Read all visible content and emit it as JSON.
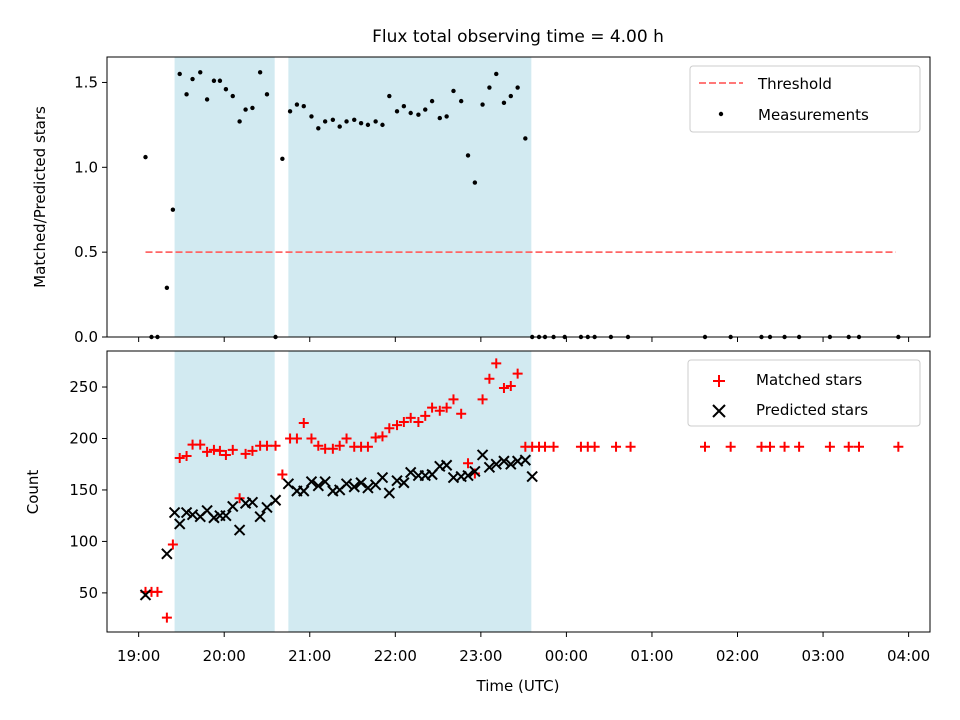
{
  "chart_data": {
    "title": "Flux total observing time = 4.00 h",
    "xlabel": "Time (UTC)",
    "x_unit": "hours UTC, continuous (values above 24 denote times after midnight)",
    "x_tick_labels": [
      "19:00",
      "20:00",
      "21:00",
      "22:00",
      "23:00",
      "00:00",
      "01:00",
      "02:00",
      "03:00",
      "04:00"
    ],
    "shaded_intervals": [
      [
        19.42,
        20.59
      ],
      [
        20.75,
        23.59
      ]
    ],
    "colors": {
      "threshold": "#ff6666",
      "measurement": "#000000",
      "matched": "#ff0000",
      "predicted": "#000000",
      "shade": "#add8e6"
    },
    "panels": [
      {
        "id": "ratio",
        "type": "scatter",
        "ylabel": "Matched/Predicted stars",
        "ylim": [
          0,
          1.65
        ],
        "yticks": [
          "0.0",
          "0.5",
          "1.0",
          "1.5"
        ],
        "legend_position": "upper right",
        "series": [
          {
            "name": "Threshold",
            "kind": "dashed-line",
            "x": [
              19.08,
              27.85
            ],
            "values": [
              0.5,
              0.5
            ]
          },
          {
            "name": "Measurements",
            "kind": "dot",
            "x": [
              19.08,
              19.15,
              19.22,
              19.33,
              19.4,
              19.48,
              19.56,
              19.63,
              19.72,
              19.8,
              19.88,
              19.95,
              20.02,
              20.1,
              20.18,
              20.25,
              20.33,
              20.42,
              20.5,
              20.6,
              20.68,
              20.77,
              20.85,
              20.93,
              21.02,
              21.1,
              21.18,
              21.27,
              21.35,
              21.43,
              21.52,
              21.6,
              21.68,
              21.77,
              21.85,
              21.93,
              22.02,
              22.1,
              22.18,
              22.27,
              22.35,
              22.43,
              22.52,
              22.6,
              22.68,
              22.77,
              22.85,
              22.93,
              23.02,
              23.1,
              23.18,
              23.27,
              23.35,
              23.43,
              23.52,
              23.6,
              23.68,
              23.75,
              23.85,
              23.98,
              24.17,
              24.25,
              24.33,
              24.52,
              24.72,
              25.62,
              25.92,
              26.28,
              26.38,
              26.55,
              26.72,
              27.08,
              27.3,
              27.42,
              27.88
            ],
            "values": [
              1.06,
              0.0,
              0.0,
              0.29,
              0.75,
              1.55,
              1.43,
              1.52,
              1.56,
              1.4,
              1.51,
              1.51,
              1.46,
              1.42,
              1.27,
              1.34,
              1.35,
              1.56,
              1.43,
              0.0,
              1.05,
              1.33,
              1.37,
              1.36,
              1.3,
              1.23,
              1.27,
              1.28,
              1.24,
              1.27,
              1.28,
              1.26,
              1.25,
              1.27,
              1.25,
              1.42,
              1.33,
              1.36,
              1.32,
              1.31,
              1.34,
              1.39,
              1.29,
              1.3,
              1.45,
              1.39,
              1.07,
              0.91,
              1.37,
              1.47,
              1.55,
              1.38,
              1.42,
              1.47,
              1.17,
              0.0,
              0.0,
              0.0,
              0.0,
              0.0,
              0.0,
              0.0,
              0.0,
              0.0,
              0.0,
              0.0,
              0.0,
              0.0,
              0.0,
              0.0,
              0.0,
              0.0,
              0.0,
              0.0,
              0.0
            ]
          }
        ]
      },
      {
        "id": "counts",
        "type": "scatter",
        "ylabel": "Count",
        "ylim": [
          12,
          285
        ],
        "yticks": [
          "50",
          "100",
          "150",
          "200",
          "250"
        ],
        "legend_position": "upper right",
        "series": [
          {
            "name": "Matched stars",
            "kind": "plus",
            "x": [
              19.08,
              19.15,
              19.22,
              19.33,
              19.4,
              19.48,
              19.56,
              19.63,
              19.72,
              19.8,
              19.88,
              19.95,
              20.02,
              20.1,
              20.18,
              20.25,
              20.33,
              20.42,
              20.5,
              20.6,
              20.68,
              20.77,
              20.85,
              20.93,
              21.02,
              21.1,
              21.18,
              21.27,
              21.35,
              21.43,
              21.52,
              21.6,
              21.68,
              21.77,
              21.85,
              21.93,
              22.02,
              22.1,
              22.18,
              22.27,
              22.35,
              22.43,
              22.52,
              22.6,
              22.68,
              22.77,
              22.85,
              22.93,
              23.02,
              23.1,
              23.18,
              23.27,
              23.35,
              23.43,
              23.52,
              23.6,
              23.68,
              23.75,
              23.85,
              24.17,
              24.25,
              24.33,
              24.58,
              24.75,
              25.62,
              25.92,
              26.28,
              26.38,
              26.55,
              26.72,
              27.08,
              27.3,
              27.42,
              27.88
            ],
            "values": [
              51,
              51,
              51,
              26,
              97,
              181,
              183,
              194,
              194,
              187,
              189,
              188,
              184,
              189,
              142,
              185,
              188,
              193,
              193,
              193,
              165,
              200,
              200,
              215,
              200,
              193,
              190,
              190,
              193,
              200,
              192,
              192,
              192,
              201,
              202,
              210,
              213,
              216,
              220,
              216,
              222,
              230,
              227,
              230,
              238,
              224,
              176,
              166,
              238,
              258,
              273,
              249,
              251,
              263,
              192,
              192,
              192,
              192,
              192,
              192,
              192,
              192,
              192,
              192,
              192,
              192,
              192,
              192,
              192,
              192,
              192,
              192,
              192,
              192
            ]
          },
          {
            "name": "Predicted stars",
            "kind": "cross",
            "x": [
              19.08,
              19.33,
              19.42,
              19.48,
              19.56,
              19.63,
              19.72,
              19.8,
              19.88,
              19.95,
              20.02,
              20.1,
              20.18,
              20.25,
              20.33,
              20.42,
              20.5,
              20.6,
              20.75,
              20.85,
              20.93,
              21.02,
              21.1,
              21.18,
              21.27,
              21.35,
              21.43,
              21.52,
              21.6,
              21.68,
              21.77,
              21.85,
              21.93,
              22.02,
              22.1,
              22.18,
              22.27,
              22.35,
              22.43,
              22.52,
              22.6,
              22.68,
              22.77,
              22.85,
              22.93,
              23.02,
              23.1,
              23.18,
              23.27,
              23.35,
              23.43,
              23.52,
              23.6
            ],
            "values": [
              48,
              88,
              128,
              117,
              128,
              126,
              124,
              130,
              123,
              125,
              125,
              134,
              111,
              137,
              138,
              124,
              133,
              140,
              156,
              149,
              149,
              158,
              154,
              158,
              149,
              150,
              156,
              153,
              157,
              152,
              155,
              162,
              147,
              159,
              157,
              167,
              164,
              164,
              165,
              173,
              174,
              162,
              163,
              164,
              168,
              184,
              172,
              175,
              178,
              175,
              178,
              179,
              163
            ]
          }
        ]
      }
    ]
  }
}
